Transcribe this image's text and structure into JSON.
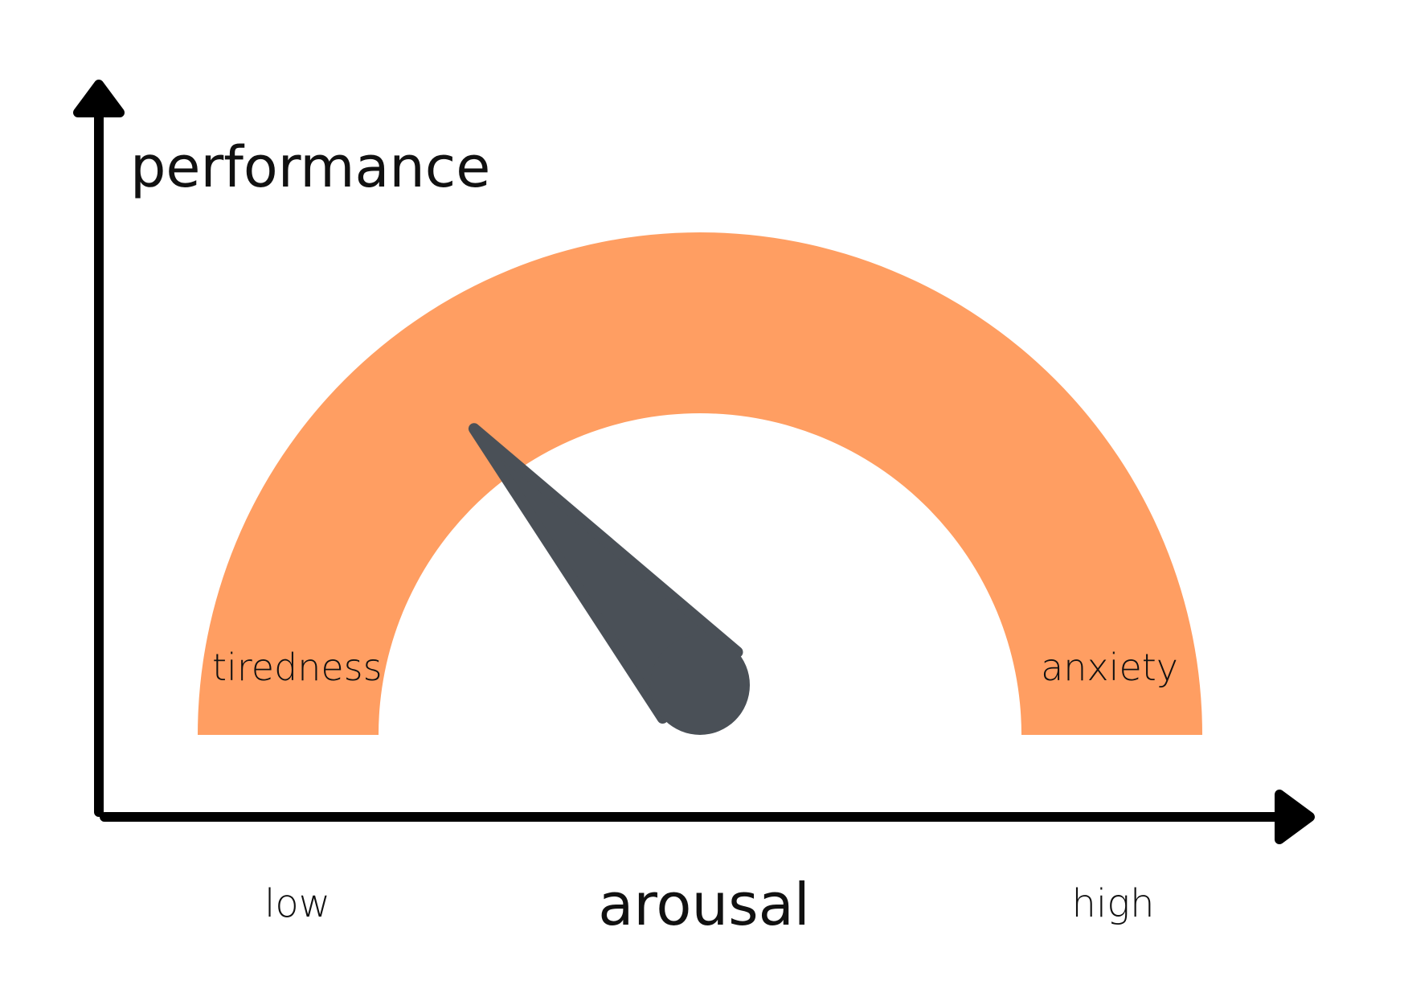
{
  "diagram": {
    "y_axis_label": "performance",
    "x_axis_label": "arousal",
    "x_axis_low_label": "low",
    "x_axis_high_label": "high",
    "zones": {
      "left": "tiredness",
      "right": "anxiety"
    },
    "gauge": {
      "arc_color": "#ff9e62",
      "needle_color": "#4a5057",
      "axis_color": "#000000",
      "needle_position_fraction": 0.27
    }
  }
}
